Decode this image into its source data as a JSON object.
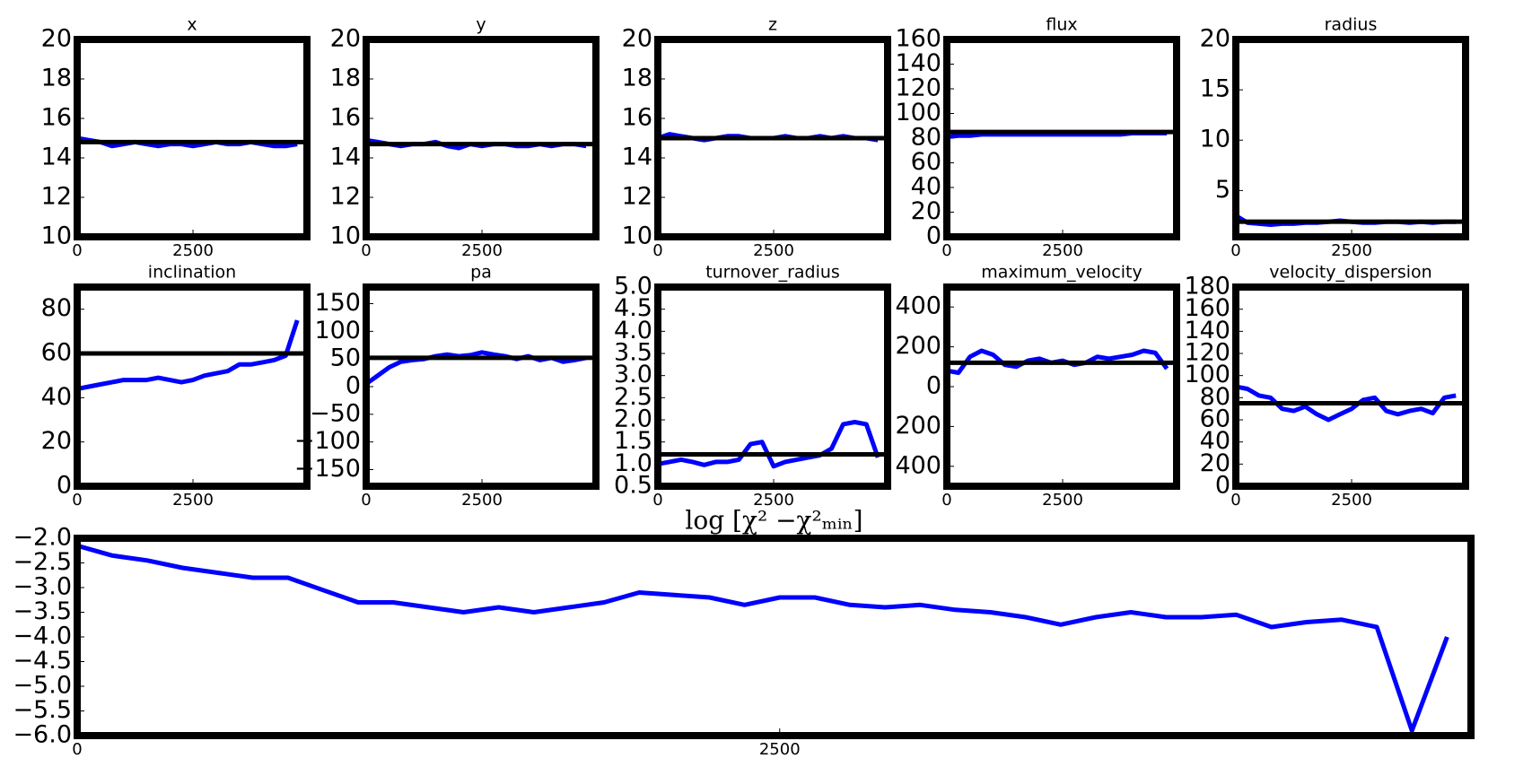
{
  "chart_data": [
    {
      "type": "line",
      "title": "x",
      "xlim": [
        0,
        4960
      ],
      "xticks": [
        0,
        2500
      ],
      "ylim": [
        10,
        20
      ],
      "yticks": [
        10,
        12,
        14,
        16,
        18,
        20
      ],
      "color": "#0000ff",
      "x": [
        0,
        250,
        500,
        750,
        1000,
        1250,
        1500,
        1750,
        2000,
        2250,
        2500,
        2750,
        3000,
        3250,
        3500,
        3750,
        4000,
        4250,
        4500,
        4750
      ],
      "values": [
        15.0,
        14.9,
        14.8,
        14.6,
        14.7,
        14.8,
        14.7,
        14.6,
        14.7,
        14.7,
        14.6,
        14.7,
        14.8,
        14.7,
        14.7,
        14.8,
        14.7,
        14.6,
        14.6,
        14.7
      ],
      "reference_line": {
        "value": 14.8,
        "color": "#000000"
      }
    },
    {
      "type": "line",
      "title": "y",
      "xlim": [
        0,
        4960
      ],
      "xticks": [
        0,
        2500
      ],
      "ylim": [
        10,
        20
      ],
      "yticks": [
        10,
        12,
        14,
        16,
        18,
        20
      ],
      "color": "#0000ff",
      "x": [
        0,
        250,
        500,
        750,
        1000,
        1250,
        1500,
        1750,
        2000,
        2250,
        2500,
        2750,
        3000,
        3250,
        3500,
        3750,
        4000,
        4250,
        4500,
        4750
      ],
      "values": [
        14.9,
        14.8,
        14.7,
        14.6,
        14.7,
        14.7,
        14.8,
        14.6,
        14.5,
        14.7,
        14.6,
        14.7,
        14.7,
        14.6,
        14.6,
        14.7,
        14.6,
        14.7,
        14.7,
        14.6
      ],
      "reference_line": {
        "value": 14.7,
        "color": "#000000"
      }
    },
    {
      "type": "line",
      "title": "z",
      "xlim": [
        0,
        4960
      ],
      "xticks": [
        0,
        2500
      ],
      "ylim": [
        10,
        20
      ],
      "yticks": [
        10,
        12,
        14,
        16,
        18,
        20
      ],
      "color": "#0000ff",
      "x": [
        0,
        250,
        500,
        750,
        1000,
        1250,
        1500,
        1750,
        2000,
        2250,
        2500,
        2750,
        3000,
        3250,
        3500,
        3750,
        4000,
        4250,
        4500,
        4750
      ],
      "values": [
        15.0,
        15.2,
        15.1,
        15.0,
        14.9,
        15.0,
        15.1,
        15.1,
        15.0,
        15.0,
        15.0,
        15.1,
        15.0,
        15.0,
        15.1,
        15.0,
        15.1,
        15.0,
        15.0,
        14.9
      ],
      "reference_line": {
        "value": 15.0,
        "color": "#000000"
      }
    },
    {
      "type": "line",
      "title": "flux",
      "xlim": [
        0,
        4960
      ],
      "xticks": [
        0,
        2500
      ],
      "ylim": [
        0,
        160
      ],
      "yticks": [
        0,
        20,
        40,
        60,
        80,
        100,
        120,
        140,
        160
      ],
      "color": "#0000ff",
      "x": [
        0,
        250,
        500,
        750,
        1000,
        1250,
        1500,
        1750,
        2000,
        2250,
        2500,
        2750,
        3000,
        3250,
        3500,
        3750,
        4000,
        4250,
        4500,
        4750
      ],
      "values": [
        81,
        82,
        82,
        83,
        83,
        83,
        83,
        83,
        83,
        83,
        83,
        83,
        83,
        83,
        83,
        83,
        84,
        84,
        84,
        84
      ],
      "reference_line": {
        "value": 85,
        "color": "#000000"
      }
    },
    {
      "type": "line",
      "title": "radius",
      "xlim": [
        0,
        4960
      ],
      "xticks": [
        0,
        2500
      ],
      "ylim": [
        0.4,
        20
      ],
      "yticks": [
        5,
        10,
        15,
        20
      ],
      "color": "#0000ff",
      "x": [
        0,
        250,
        500,
        750,
        1000,
        1250,
        1500,
        1750,
        2000,
        2250,
        2500,
        2750,
        3000,
        3250,
        3500,
        3750,
        4000,
        4250,
        4500,
        4750
      ],
      "values": [
        2.5,
        1.8,
        1.7,
        1.6,
        1.7,
        1.7,
        1.8,
        1.8,
        1.9,
        2.0,
        1.9,
        1.8,
        1.8,
        1.9,
        1.9,
        1.8,
        1.9,
        1.8,
        1.9,
        1.9
      ],
      "reference_line": {
        "value": 1.9,
        "color": "#000000"
      }
    },
    {
      "type": "line",
      "title": "inclination",
      "xlim": [
        0,
        4960
      ],
      "xticks": [
        0,
        2500
      ],
      "ylim": [
        0,
        90
      ],
      "yticks": [
        0,
        20,
        40,
        60,
        80
      ],
      "color": "#0000ff",
      "x": [
        0,
        250,
        500,
        750,
        1000,
        1250,
        1500,
        1750,
        2000,
        2250,
        2500,
        2750,
        3000,
        3250,
        3500,
        3750,
        4000,
        4250,
        4500,
        4750
      ],
      "values": [
        44,
        45,
        46,
        47,
        48,
        48,
        48,
        49,
        48,
        47,
        48,
        50,
        51,
        52,
        55,
        55,
        56,
        57,
        59,
        75
      ],
      "reference_line": {
        "value": 60,
        "color": "#000000"
      }
    },
    {
      "type": "line",
      "title": "pa",
      "xlim": [
        0,
        4960
      ],
      "xticks": [
        0,
        2500
      ],
      "ylim": [
        -180,
        180
      ],
      "yticks": [
        {
          "value": -150,
          "label": "−150"
        },
        {
          "value": -100,
          "label": "−100"
        },
        {
          "value": -50,
          "label": "−50"
        },
        0,
        50,
        100,
        150
      ],
      "color": "#0000ff",
      "x": [
        0,
        250,
        500,
        750,
        1000,
        1250,
        1500,
        1750,
        2000,
        2250,
        2500,
        2750,
        3000,
        3250,
        3500,
        3750,
        4000,
        4250,
        4500,
        4750
      ],
      "values": [
        5,
        20,
        35,
        45,
        48,
        50,
        55,
        58,
        55,
        57,
        62,
        58,
        55,
        50,
        55,
        48,
        52,
        45,
        48,
        52
      ],
      "reference_line": {
        "value": 52,
        "color": "#000000"
      }
    },
    {
      "type": "line",
      "title": "turnover_radius",
      "xlim": [
        0,
        4960
      ],
      "xticks": [
        0,
        2500
      ],
      "ylim": [
        0.5,
        5.0
      ],
      "yticks": [
        0.5,
        {
          "value": 1.0,
          "label": "1.0"
        },
        1.5,
        {
          "value": 2.0,
          "label": "2.0"
        },
        2.5,
        {
          "value": 3.0,
          "label": "3.0"
        },
        3.5,
        {
          "value": 4.0,
          "label": "4.0"
        },
        4.5,
        {
          "value": 5.0,
          "label": "5.0"
        }
      ],
      "color": "#0000ff",
      "x": [
        0,
        250,
        500,
        750,
        1000,
        1250,
        1500,
        1750,
        2000,
        2250,
        2500,
        2750,
        3000,
        3250,
        3500,
        3750,
        4000,
        4250,
        4500,
        4750
      ],
      "values": [
        1.0,
        1.05,
        1.1,
        1.05,
        0.98,
        1.05,
        1.05,
        1.1,
        1.45,
        1.5,
        0.95,
        1.05,
        1.1,
        1.15,
        1.2,
        1.35,
        1.9,
        1.95,
        1.9,
        1.15
      ],
      "reference_line": {
        "value": 1.22,
        "color": "#000000"
      }
    },
    {
      "type": "line",
      "title": "maximum_velocity",
      "xlim": [
        0,
        4960
      ],
      "xticks": [
        0,
        2500
      ],
      "ylim": [
        -500,
        500
      ],
      "yticks": [
        {
          "value": -400,
          "label": "400"
        },
        {
          "value": -200,
          "label": "200"
        },
        0,
        200,
        400
      ],
      "color": "#0000ff",
      "x": [
        0,
        250,
        500,
        750,
        1000,
        1250,
        1500,
        1750,
        2000,
        2250,
        2500,
        2750,
        3000,
        3250,
        3500,
        3750,
        4000,
        4250,
        4500,
        4750
      ],
      "values": [
        80,
        70,
        150,
        180,
        160,
        110,
        100,
        130,
        140,
        120,
        130,
        110,
        120,
        150,
        140,
        150,
        160,
        180,
        170,
        90
      ],
      "reference_line": {
        "value": 120,
        "color": "#000000"
      }
    },
    {
      "type": "line",
      "title": "velocity_dispersion",
      "xlim": [
        0,
        4960
      ],
      "xticks": [
        0,
        2500
      ],
      "ylim": [
        0,
        180
      ],
      "yticks": [
        0,
        20,
        40,
        60,
        80,
        100,
        120,
        140,
        160,
        180
      ],
      "color": "#0000ff",
      "x": [
        0,
        250,
        500,
        750,
        1000,
        1250,
        1500,
        1750,
        2000,
        2250,
        2500,
        2750,
        3000,
        3250,
        3500,
        3750,
        4000,
        4250,
        4500,
        4750
      ],
      "values": [
        90,
        88,
        82,
        80,
        70,
        68,
        72,
        65,
        60,
        65,
        70,
        78,
        80,
        68,
        65,
        68,
        70,
        66,
        80,
        82
      ],
      "reference_line": {
        "value": 75,
        "color": "#000000"
      }
    },
    {
      "type": "line",
      "title": "log [χ² −χ²ₘᵢₙ]",
      "xlim": [
        0,
        4960
      ],
      "xticks": [
        0,
        2500
      ],
      "ylim": [
        -6,
        -2
      ],
      "yticks": [
        {
          "value": -6,
          "label": "−6.0"
        },
        {
          "value": -5.5,
          "label": "−5.5"
        },
        {
          "value": -5,
          "label": "−5.0"
        },
        {
          "value": -4.5,
          "label": "−4.5"
        },
        {
          "value": -4,
          "label": "−4.0"
        },
        {
          "value": -3.5,
          "label": "−3.5"
        },
        {
          "value": -3,
          "label": "−3.0"
        },
        {
          "value": -2.5,
          "label": "−2.5"
        },
        {
          "value": -2,
          "label": "−2.0"
        }
      ],
      "color": "#0000ff",
      "x": [
        0,
        125,
        250,
        375,
        500,
        625,
        750,
        875,
        1000,
        1125,
        1250,
        1375,
        1500,
        1625,
        1750,
        1875,
        2000,
        2125,
        2250,
        2375,
        2500,
        2625,
        2750,
        2875,
        3000,
        3125,
        3250,
        3375,
        3500,
        3625,
        3750,
        3875,
        4000,
        4125,
        4250,
        4375,
        4500,
        4625,
        4750,
        4875
      ],
      "values": [
        -2.15,
        -2.35,
        -2.45,
        -2.6,
        -2.7,
        -2.8,
        -2.8,
        -3.05,
        -3.3,
        -3.3,
        -3.4,
        -3.5,
        -3.4,
        -3.5,
        -3.4,
        -3.3,
        -3.1,
        -3.15,
        -3.2,
        -3.35,
        -3.2,
        -3.2,
        -3.35,
        -3.4,
        -3.35,
        -3.45,
        -3.5,
        -3.6,
        -3.75,
        -3.6,
        -3.5,
        -3.6,
        -3.6,
        -3.55,
        -3.8,
        -3.7,
        -3.65,
        -3.8,
        -5.9,
        -4.0
      ]
    }
  ]
}
